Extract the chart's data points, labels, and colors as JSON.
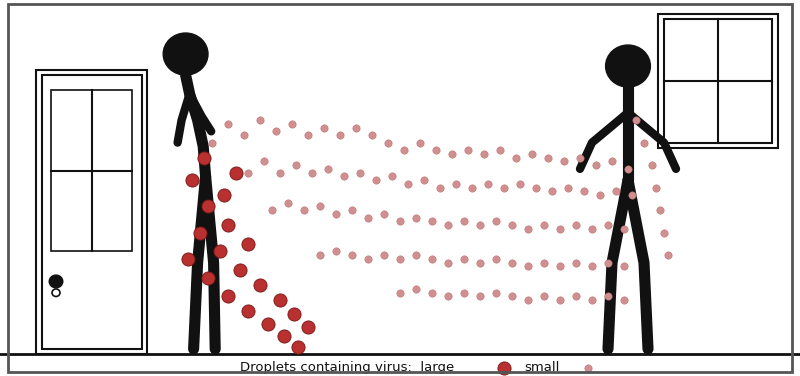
{
  "bg_color": "#ffffff",
  "border_color": "#555555",
  "large_droplet_color": "#b83030",
  "large_droplet_edge": "#7a1515",
  "small_droplet_color": "#d09090",
  "small_droplet_edge": "#c07070",
  "figure_color": "#111111",
  "legend_text": "Droplets containing virus:  large",
  "legend_text2": "small",
  "xlim": [
    0,
    10
  ],
  "ylim": [
    0,
    5
  ],
  "figsize": [
    8.0,
    3.76
  ],
  "dpi": 100,
  "large_droplets": [
    [
      2.35,
      1.55
    ],
    [
      2.5,
      1.9
    ],
    [
      2.6,
      2.25
    ],
    [
      2.6,
      1.3
    ],
    [
      2.75,
      1.65
    ],
    [
      2.85,
      2.0
    ],
    [
      2.85,
      1.05
    ],
    [
      3.0,
      1.4
    ],
    [
      3.1,
      1.75
    ],
    [
      3.1,
      0.85
    ],
    [
      3.25,
      1.2
    ],
    [
      3.35,
      0.68
    ],
    [
      3.5,
      1.0
    ],
    [
      3.55,
      0.52
    ],
    [
      3.68,
      0.82
    ],
    [
      3.72,
      0.38
    ],
    [
      3.85,
      0.65
    ],
    [
      2.4,
      2.6
    ],
    [
      2.55,
      2.9
    ],
    [
      2.8,
      2.4
    ],
    [
      2.95,
      2.7
    ]
  ],
  "small_droplets": [
    [
      2.65,
      3.1
    ],
    [
      2.85,
      3.35
    ],
    [
      3.05,
      3.2
    ],
    [
      3.25,
      3.4
    ],
    [
      3.45,
      3.25
    ],
    [
      3.65,
      3.35
    ],
    [
      3.85,
      3.2
    ],
    [
      4.05,
      3.3
    ],
    [
      4.25,
      3.2
    ],
    [
      4.45,
      3.3
    ],
    [
      4.65,
      3.2
    ],
    [
      4.85,
      3.1
    ],
    [
      5.05,
      3.0
    ],
    [
      5.25,
      3.1
    ],
    [
      5.45,
      3.0
    ],
    [
      5.65,
      2.95
    ],
    [
      5.85,
      3.0
    ],
    [
      6.05,
      2.95
    ],
    [
      6.25,
      3.0
    ],
    [
      6.45,
      2.9
    ],
    [
      6.65,
      2.95
    ],
    [
      6.85,
      2.9
    ],
    [
      7.05,
      2.85
    ],
    [
      7.25,
      2.9
    ],
    [
      7.45,
      2.8
    ],
    [
      7.65,
      2.85
    ],
    [
      7.85,
      2.75
    ],
    [
      3.1,
      2.7
    ],
    [
      3.3,
      2.85
    ],
    [
      3.5,
      2.7
    ],
    [
      3.7,
      2.8
    ],
    [
      3.9,
      2.7
    ],
    [
      4.1,
      2.75
    ],
    [
      4.3,
      2.65
    ],
    [
      4.5,
      2.7
    ],
    [
      4.7,
      2.6
    ],
    [
      4.9,
      2.65
    ],
    [
      5.1,
      2.55
    ],
    [
      5.3,
      2.6
    ],
    [
      5.5,
      2.5
    ],
    [
      5.7,
      2.55
    ],
    [
      5.9,
      2.5
    ],
    [
      6.1,
      2.55
    ],
    [
      6.3,
      2.5
    ],
    [
      6.5,
      2.55
    ],
    [
      6.7,
      2.5
    ],
    [
      6.9,
      2.45
    ],
    [
      7.1,
      2.5
    ],
    [
      7.3,
      2.45
    ],
    [
      7.5,
      2.4
    ],
    [
      7.7,
      2.45
    ],
    [
      7.9,
      2.4
    ],
    [
      3.4,
      2.2
    ],
    [
      3.6,
      2.3
    ],
    [
      3.8,
      2.2
    ],
    [
      4.0,
      2.25
    ],
    [
      4.2,
      2.15
    ],
    [
      4.4,
      2.2
    ],
    [
      4.6,
      2.1
    ],
    [
      4.8,
      2.15
    ],
    [
      5.0,
      2.05
    ],
    [
      5.2,
      2.1
    ],
    [
      5.4,
      2.05
    ],
    [
      5.6,
      2.0
    ],
    [
      5.8,
      2.05
    ],
    [
      6.0,
      2.0
    ],
    [
      6.2,
      2.05
    ],
    [
      6.4,
      2.0
    ],
    [
      6.6,
      1.95
    ],
    [
      6.8,
      2.0
    ],
    [
      7.0,
      1.95
    ],
    [
      7.2,
      2.0
    ],
    [
      7.4,
      1.95
    ],
    [
      7.6,
      2.0
    ],
    [
      7.8,
      1.95
    ],
    [
      4.0,
      1.6
    ],
    [
      4.2,
      1.65
    ],
    [
      4.4,
      1.6
    ],
    [
      4.6,
      1.55
    ],
    [
      4.8,
      1.6
    ],
    [
      5.0,
      1.55
    ],
    [
      5.2,
      1.6
    ],
    [
      5.4,
      1.55
    ],
    [
      5.6,
      1.5
    ],
    [
      5.8,
      1.55
    ],
    [
      6.0,
      1.5
    ],
    [
      6.2,
      1.55
    ],
    [
      6.4,
      1.5
    ],
    [
      6.6,
      1.45
    ],
    [
      6.8,
      1.5
    ],
    [
      7.0,
      1.45
    ],
    [
      7.2,
      1.5
    ],
    [
      7.4,
      1.45
    ],
    [
      7.6,
      1.5
    ],
    [
      7.8,
      1.45
    ],
    [
      5.0,
      1.1
    ],
    [
      5.2,
      1.15
    ],
    [
      5.4,
      1.1
    ],
    [
      5.6,
      1.05
    ],
    [
      5.8,
      1.1
    ],
    [
      6.0,
      1.05
    ],
    [
      6.2,
      1.1
    ],
    [
      6.4,
      1.05
    ],
    [
      6.6,
      1.0
    ],
    [
      6.8,
      1.05
    ],
    [
      7.0,
      1.0
    ],
    [
      7.2,
      1.05
    ],
    [
      7.4,
      1.0
    ],
    [
      7.6,
      1.05
    ],
    [
      7.8,
      1.0
    ],
    [
      7.95,
      3.4
    ],
    [
      8.05,
      3.1
    ],
    [
      8.15,
      2.8
    ],
    [
      8.2,
      2.5
    ],
    [
      8.25,
      2.2
    ],
    [
      8.3,
      1.9
    ],
    [
      8.35,
      1.6
    ]
  ]
}
